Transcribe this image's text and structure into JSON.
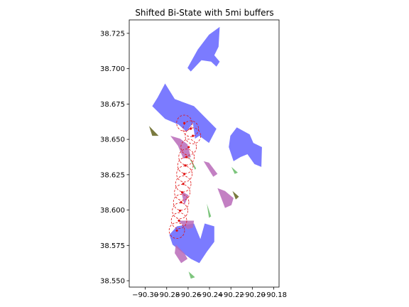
{
  "chart_data": {
    "type": "map",
    "title": "Shifted Bi-State with 5mi buffers",
    "xlabel": "",
    "ylabel": "",
    "xlim": [
      -90.315,
      -90.175
    ],
    "ylim": [
      38.5455,
      38.7345
    ],
    "grid": false,
    "x_ticks": [
      -90.3,
      -90.28,
      -90.26,
      -90.24,
      -90.22,
      -90.2,
      -90.18
    ],
    "x_tick_labels": [
      "−90.30",
      "−90.28",
      "−90.26",
      "−90.24",
      "−90.22",
      "−90.20",
      "−90.18"
    ],
    "y_ticks": [
      38.55,
      38.575,
      38.6,
      38.625,
      38.65,
      38.675,
      38.7,
      38.725
    ],
    "y_tick_labels": [
      "38.550",
      "38.575",
      "38.600",
      "38.625",
      "38.650",
      "38.675",
      "38.700",
      "38.725"
    ],
    "colors": {
      "blue_regions": "#7b7bff",
      "purple_regions": "#b86ab8",
      "green_features": "#6fbf6f",
      "olive_features": "#6b6b2a",
      "red_points": "#e01010",
      "buffer_circles": "#e01010"
    },
    "blue_regions": [
      [
        [
          -90.2305,
          38.7295
        ],
        [
          -90.2405,
          38.724
        ],
        [
          -90.251,
          38.7135
        ],
        [
          -90.2605,
          38.7005
        ],
        [
          -90.2575,
          38.698
        ],
        [
          -90.2475,
          38.706
        ],
        [
          -90.2385,
          38.705
        ],
        [
          -90.2335,
          38.7015
        ],
        [
          -90.2305,
          38.705
        ],
        [
          -90.2355,
          38.7095
        ],
        [
          -90.2315,
          38.7155
        ],
        [
          -90.2305,
          38.7295
        ]
      ],
      [
        [
          -90.2815,
          38.6895
        ],
        [
          -90.2885,
          38.6795
        ],
        [
          -90.2935,
          38.6735
        ],
        [
          -90.2815,
          38.6645
        ],
        [
          -90.269,
          38.6605
        ],
        [
          -90.2615,
          38.6555
        ],
        [
          -90.2555,
          38.6615
        ],
        [
          -90.2535,
          38.6505
        ],
        [
          -90.2495,
          38.6525
        ],
        [
          -90.2405,
          38.6475
        ],
        [
          -90.2335,
          38.6575
        ],
        [
          -90.2545,
          38.6735
        ],
        [
          -90.2725,
          38.6785
        ],
        [
          -90.2815,
          38.6895
        ]
      ],
      [
        [
          -90.2145,
          38.6585
        ],
        [
          -90.2205,
          38.6525
        ],
        [
          -90.222,
          38.6445
        ],
        [
          -90.2175,
          38.6345
        ],
        [
          -90.211,
          38.6375
        ],
        [
          -90.2045,
          38.6395
        ],
        [
          -90.198,
          38.6325
        ],
        [
          -90.1915,
          38.6305
        ],
        [
          -90.191,
          38.6445
        ],
        [
          -90.199,
          38.6475
        ],
        [
          -90.2025,
          38.6535
        ],
        [
          -90.2145,
          38.6585
        ]
      ],
      [
        [
          -90.2545,
          38.5905
        ],
        [
          -90.2705,
          38.5885
        ],
        [
          -90.2775,
          38.5825
        ],
        [
          -90.2745,
          38.5755
        ],
        [
          -90.2645,
          38.5695
        ],
        [
          -90.2575,
          38.5655
        ],
        [
          -90.2495,
          38.5625
        ],
        [
          -90.2425,
          38.5705
        ],
        [
          -90.2355,
          38.5775
        ],
        [
          -90.2355,
          38.5885
        ],
        [
          -90.2445,
          38.5905
        ],
        [
          -90.2485,
          38.5795
        ],
        [
          -90.2545,
          38.5905
        ]
      ]
    ],
    "purple_regions": [
      [
        [
          -90.2765,
          38.6525
        ],
        [
          -90.2675,
          38.6505
        ],
        [
          -90.2605,
          38.6465
        ],
        [
          -90.2575,
          38.6375
        ],
        [
          -90.2645,
          38.6365
        ],
        [
          -90.2695,
          38.6455
        ],
        [
          -90.2765,
          38.6525
        ]
      ],
      [
        [
          -90.2455,
          38.6345
        ],
        [
          -90.2405,
          38.6335
        ],
        [
          -90.2325,
          38.6255
        ],
        [
          -90.2365,
          38.6235
        ],
        [
          -90.2455,
          38.6345
        ]
      ],
      [
        [
          -90.2325,
          38.6155
        ],
        [
          -90.2255,
          38.6135
        ],
        [
          -90.2175,
          38.6085
        ],
        [
          -90.2195,
          38.6035
        ],
        [
          -90.2255,
          38.6015
        ],
        [
          -90.2325,
          38.6155
        ]
      ],
      [
        [
          -90.2665,
          38.6135
        ],
        [
          -90.2595,
          38.6105
        ],
        [
          -90.2635,
          38.6035
        ],
        [
          -90.2665,
          38.6135
        ]
      ],
      [
        [
          -90.2695,
          38.5925
        ],
        [
          -90.2605,
          38.5865
        ],
        [
          -90.2555,
          38.5875
        ],
        [
          -90.2545,
          38.5925
        ],
        [
          -90.2695,
          38.5925
        ]
      ],
      [
        [
          -90.2715,
          38.5755
        ],
        [
          -90.2635,
          38.5695
        ],
        [
          -90.2605,
          38.5655
        ],
        [
          -90.2665,
          38.5625
        ],
        [
          -90.2725,
          38.5695
        ],
        [
          -90.2715,
          38.5755
        ]
      ]
    ],
    "green_features": [
      [
        [
          -90.2275,
          38.6785
        ],
        [
          -90.2215,
          38.6755
        ],
        [
          -90.2255,
          38.6775
        ],
        [
          -90.2275,
          38.6785
        ]
      ],
      [
        [
          -90.2605,
          38.6395
        ],
        [
          -90.2525,
          38.6295
        ],
        [
          -90.2535,
          38.6285
        ],
        [
          -90.2605,
          38.6395
        ]
      ],
      [
        [
          -90.2425,
          38.6045
        ],
        [
          -90.2385,
          38.5955
        ],
        [
          -90.2405,
          38.5945
        ],
        [
          -90.2425,
          38.6045
        ]
      ],
      [
        [
          -90.2595,
          38.5565
        ],
        [
          -90.2535,
          38.5525
        ],
        [
          -90.2575,
          38.5515
        ],
        [
          -90.2595,
          38.5565
        ]
      ],
      [
        [
          -90.2195,
          38.6305
        ],
        [
          -90.2135,
          38.6265
        ],
        [
          -90.2165,
          38.6255
        ],
        [
          -90.2195,
          38.6305
        ]
      ]
    ],
    "olive_features": [
      [
        [
          -90.2965,
          38.6595
        ],
        [
          -90.2935,
          38.6525
        ],
        [
          -90.2875,
          38.6525
        ],
        [
          -90.2965,
          38.6595
        ]
      ],
      [
        [
          -90.2185,
          38.6135
        ],
        [
          -90.2125,
          38.6095
        ],
        [
          -90.2155,
          38.6075
        ],
        [
          -90.2185,
          38.6135
        ]
      ]
    ],
    "red_points": [
      [
        -90.2635,
        38.6615
      ],
      [
        -90.2575,
        38.6575
      ],
      [
        -90.2555,
        38.6525
      ],
      [
        -90.2595,
        38.6445
      ],
      [
        -90.2615,
        38.6375
      ],
      [
        -90.2625,
        38.6315
      ],
      [
        -90.2635,
        38.6255
      ],
      [
        -90.2645,
        38.6185
      ],
      [
        -90.2655,
        38.6125
      ],
      [
        -90.2665,
        38.6055
      ],
      [
        -90.2675,
        38.5995
      ],
      [
        -90.2685,
        38.5925
      ],
      [
        -90.2705,
        38.5855
      ]
    ],
    "buffer_radius_deg": 0.0072
  }
}
